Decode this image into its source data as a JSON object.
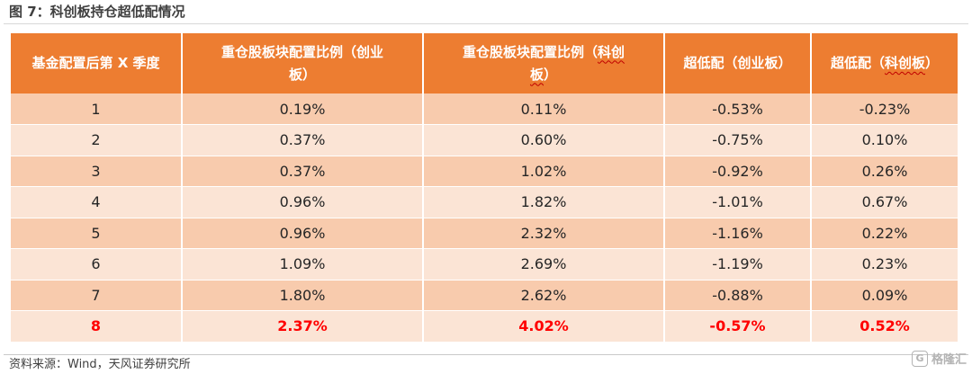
{
  "figure": {
    "title": "图 7：科创板持仓超低配情况"
  },
  "table": {
    "headers": {
      "quarter": "基金配置后第 X 季度",
      "overweight_chinext_a": "重仓股板块配置比例（创业",
      "overweight_chinext_b": "板）",
      "overweight_star_a": "重仓股板块配置比例（",
      "overweight_star_u1": "科创",
      "overweight_star_b": "板）",
      "overweight_star_u2": "板",
      "excess_chinext": "超低配（创业板）",
      "excess_star_a": "超低配（",
      "excess_star_u": "科创板",
      "excess_star_b": "）"
    },
    "rows": [
      {
        "quarter": "1",
        "chinext_weight": "0.19%",
        "star_weight": "0.11%",
        "chinext_excess": "-0.53%",
        "star_excess": "-0.23%"
      },
      {
        "quarter": "2",
        "chinext_weight": "0.37%",
        "star_weight": "0.60%",
        "chinext_excess": "-0.75%",
        "star_excess": "0.10%"
      },
      {
        "quarter": "3",
        "chinext_weight": "0.37%",
        "star_weight": "1.02%",
        "chinext_excess": "-0.92%",
        "star_excess": "0.26%"
      },
      {
        "quarter": "4",
        "chinext_weight": "0.96%",
        "star_weight": "1.82%",
        "chinext_excess": "-1.01%",
        "star_excess": "0.67%"
      },
      {
        "quarter": "5",
        "chinext_weight": "0.96%",
        "star_weight": "2.32%",
        "chinext_excess": "-1.16%",
        "star_excess": "0.22%"
      },
      {
        "quarter": "6",
        "chinext_weight": "1.09%",
        "star_weight": "2.69%",
        "chinext_excess": "-1.19%",
        "star_excess": "0.23%"
      },
      {
        "quarter": "7",
        "chinext_weight": "1.80%",
        "star_weight": "2.62%",
        "chinext_excess": "-0.88%",
        "star_excess": "0.09%"
      },
      {
        "quarter": "8",
        "chinext_weight": "2.37%",
        "star_weight": "4.02%",
        "chinext_excess": "-0.57%",
        "star_excess": "0.52%"
      }
    ]
  },
  "source": "资料来源：Wind，天风证券研究所",
  "watermark": {
    "icon": "G",
    "text": "格隆汇"
  },
  "colors": {
    "header_bg": "#ed7d31",
    "row_odd_bg": "#f8cbad",
    "row_even_bg": "#fbe4d5",
    "highlight_text": "#ff0000"
  }
}
